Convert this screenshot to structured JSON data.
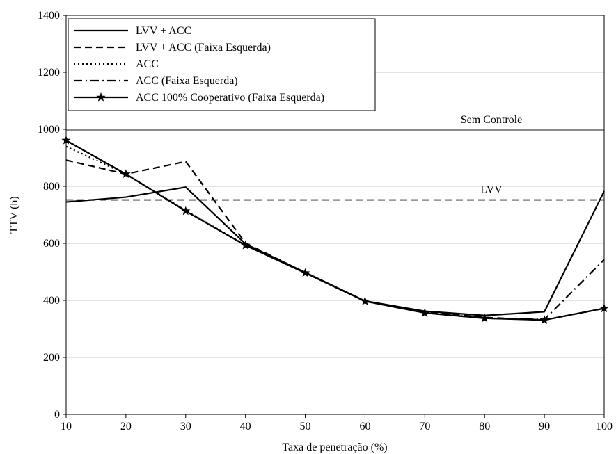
{
  "chart_data": {
    "type": "line",
    "xlabel": "Taxa de penetração (%)",
    "ylabel": "TTV (h)",
    "x": [
      10,
      20,
      30,
      40,
      50,
      60,
      70,
      80,
      90,
      100
    ],
    "xlim": [
      10,
      100
    ],
    "ylim": [
      0,
      1400
    ],
    "x_ticks": [
      10,
      20,
      30,
      40,
      50,
      60,
      70,
      80,
      90,
      100
    ],
    "y_ticks": [
      0,
      200,
      400,
      600,
      800,
      1000,
      1200,
      1400
    ],
    "grid": "horizontal",
    "legend_position": "top-left",
    "series": [
      {
        "name": "LVV + ACC",
        "style": "solid",
        "marker": "none",
        "color": "#000000",
        "values": [
          745,
          762,
          797,
          598,
          498,
          398,
          362,
          347,
          360,
          783
        ]
      },
      {
        "name": "LVV + ACC (Faixa Esquerda)",
        "style": "dashed",
        "marker": "none",
        "color": "#000000",
        "values": [
          892,
          843,
          887,
          601,
          497,
          397,
          360,
          340,
          331,
          372
        ]
      },
      {
        "name": "ACC",
        "style": "dotted",
        "marker": "none",
        "color": "#000000",
        "values": [
          940,
          843,
          715,
          594,
          496,
          397,
          357,
          338,
          331,
          372
        ]
      },
      {
        "name": "ACC (Faixa Esquerda)",
        "style": "dashdot",
        "marker": "none",
        "color": "#000000",
        "values": [
          961,
          843,
          714,
          593,
          496,
          397,
          356,
          337,
          333,
          543
        ]
      },
      {
        "name": "ACC 100% Cooperativo (Faixa Esquerda)",
        "style": "solid",
        "marker": "star",
        "color": "#000000",
        "values": [
          961,
          843,
          713,
          593,
          496,
          397,
          356,
          337,
          331,
          372
        ]
      }
    ],
    "reference_lines": [
      {
        "label": "Sem Controle",
        "y": 997,
        "style": "solid",
        "color": "#8c8c8c"
      },
      {
        "label": "LVV",
        "y": 752,
        "style": "dashed",
        "color": "#8c8c8c"
      }
    ]
  }
}
